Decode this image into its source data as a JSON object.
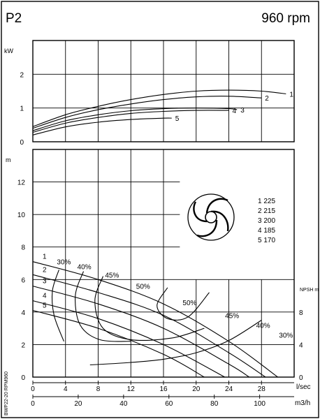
{
  "chart_data": [
    {
      "type": "line",
      "title": "P2",
      "subtitle": "960 rpm",
      "ylabel": "kW",
      "ylim": [
        0,
        3
      ],
      "yticks": [
        "0",
        "1",
        "2"
      ],
      "series": [
        {
          "name": "1",
          "x": [
            0,
            4,
            8,
            12,
            16,
            20,
            24,
            28,
            31
          ],
          "y": [
            0.45,
            0.8,
            1.05,
            1.25,
            1.4,
            1.5,
            1.53,
            1.5,
            1.42
          ]
        },
        {
          "name": "2",
          "x": [
            0,
            4,
            8,
            12,
            16,
            20,
            24,
            28
          ],
          "y": [
            0.4,
            0.72,
            0.95,
            1.12,
            1.25,
            1.33,
            1.35,
            1.3
          ]
        },
        {
          "name": "3",
          "x": [
            0,
            4,
            8,
            12,
            16,
            20,
            24,
            25
          ],
          "y": [
            0.33,
            0.62,
            0.8,
            0.92,
            0.98,
            1.0,
            0.98,
            0.95
          ]
        },
        {
          "name": "4",
          "x": [
            0,
            4,
            8,
            12,
            16,
            20,
            24
          ],
          "y": [
            0.28,
            0.55,
            0.72,
            0.84,
            0.9,
            0.93,
            0.93
          ]
        },
        {
          "name": "5",
          "x": [
            0,
            4,
            8,
            12,
            16,
            17
          ],
          "y": [
            0.2,
            0.44,
            0.58,
            0.66,
            0.7,
            0.7
          ]
        }
      ]
    },
    {
      "type": "line",
      "ylabel": "m",
      "y2label": "NPSH\nm",
      "xlabel": "l/sec",
      "x2label": "m3/h",
      "ylim": [
        0,
        14
      ],
      "yticks": [
        "0",
        "2",
        "4",
        "6",
        "8",
        "10",
        "12"
      ],
      "y2ticks": [
        "0",
        "4",
        "8"
      ],
      "xticks": [
        "0",
        "4",
        "8",
        "12",
        "16",
        "20",
        "24",
        "28"
      ],
      "x2ticks": [
        "0",
        "20",
        "40",
        "60",
        "80",
        "100"
      ],
      "legend": [
        {
          "id": "1",
          "value": "225"
        },
        {
          "id": "2",
          "value": "215"
        },
        {
          "id": "3",
          "value": "200"
        },
        {
          "id": "4",
          "value": "185"
        },
        {
          "id": "5",
          "value": "170"
        }
      ],
      "head_curves": [
        {
          "name": "1",
          "x": [
            0,
            8,
            16,
            24,
            30
          ],
          "y": [
            7.1,
            6.0,
            4.5,
            2.2,
            0
          ]
        },
        {
          "name": "2",
          "x": [
            0,
            8,
            16,
            24,
            28.5
          ],
          "y": [
            6.3,
            5.2,
            3.8,
            1.5,
            0
          ]
        },
        {
          "name": "3",
          "x": [
            0,
            8,
            16,
            24,
            26.5
          ],
          "y": [
            5.6,
            4.5,
            3.0,
            0.8,
            0
          ]
        },
        {
          "name": "4",
          "x": [
            0,
            8,
            16,
            23.5
          ],
          "y": [
            4.7,
            3.6,
            2.0,
            0
          ]
        },
        {
          "name": "5",
          "x": [
            0,
            8,
            16,
            21
          ],
          "y": [
            4.1,
            3.0,
            1.4,
            0
          ]
        }
      ],
      "efficiency_labels": [
        "30%",
        "40%",
        "45%",
        "50%",
        "50%",
        "45%",
        "40%",
        "30%"
      ],
      "npsh_curve": {
        "x": [
          7,
          12,
          16,
          20,
          24,
          28
        ],
        "y": [
          1.5,
          1.8,
          2.2,
          3.0,
          4.5,
          7.0
        ]
      },
      "side_caption": "BWP22-20 RPM960"
    }
  ]
}
